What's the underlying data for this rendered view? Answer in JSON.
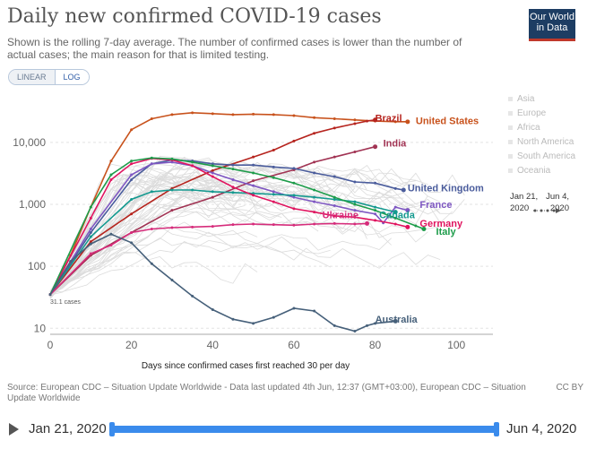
{
  "header": {
    "title": "Daily new confirmed COVID-19 cases",
    "subtitle": "Shown is the rolling 7-day average. The number of confirmed cases is lower than the number of actual cases; the main reason for that is limited testing.",
    "logo_line1": "Our World",
    "logo_line2": "in Data"
  },
  "controls": {
    "linear_label": "LINEAR",
    "log_label": "LOG",
    "selected": "LOG"
  },
  "legend": {
    "regions": [
      {
        "label": "Asia",
        "color": "#e6e6e6"
      },
      {
        "label": "Europe",
        "color": "#e6e6e6"
      },
      {
        "label": "Africa",
        "color": "#e6e6e6"
      },
      {
        "label": "North America",
        "color": "#e6e6e6"
      },
      {
        "label": "South America",
        "color": "#e6e6e6"
      },
      {
        "label": "Oceania",
        "color": "#e6e6e6"
      }
    ],
    "date_from": "Jan 21, 2020",
    "date_to": "Jun 4, 2020"
  },
  "footer": {
    "source": "Source: European CDC – Situation Update Worldwide - Data last updated 4th Jun, 12:37 (GMT+03:00), European CDC – Situation Update Worldwide",
    "license": "CC BY"
  },
  "timeline": {
    "start_label": "Jan 21, 2020",
    "end_label": "Jun 4, 2020"
  },
  "chart_data": {
    "type": "line",
    "title": "Daily new confirmed COVID-19 cases",
    "xlabel": "Days since confirmed cases first reached 30 per day",
    "ylabel": "",
    "xlim": [
      0,
      109
    ],
    "ylim": [
      8,
      60000
    ],
    "yscale": "log",
    "x_ticks": [
      0,
      20,
      40,
      60,
      80,
      100
    ],
    "y_ticks": [
      10,
      100,
      1000,
      10000
    ],
    "y_tick_labels": [
      "10",
      "100",
      "1,000",
      "10,000"
    ],
    "annotation": "31.1 cases",
    "series": [
      {
        "name": "United States",
        "color": "#c8521c",
        "points": [
          [
            0,
            35
          ],
          [
            5,
            150
          ],
          [
            10,
            900
          ],
          [
            15,
            5000
          ],
          [
            20,
            16000
          ],
          [
            25,
            24000
          ],
          [
            30,
            28000
          ],
          [
            35,
            30000
          ],
          [
            40,
            29000
          ],
          [
            45,
            28000
          ],
          [
            50,
            28500
          ],
          [
            55,
            28000
          ],
          [
            60,
            27000
          ],
          [
            65,
            25000
          ],
          [
            70,
            24000
          ],
          [
            75,
            23000
          ],
          [
            80,
            22000
          ],
          [
            85,
            21500
          ],
          [
            88,
            21500
          ]
        ]
      },
      {
        "name": "Brazil",
        "color": "#b6241e",
        "points": [
          [
            0,
            35
          ],
          [
            10,
            250
          ],
          [
            20,
            700
          ],
          [
            30,
            1800
          ],
          [
            40,
            3500
          ],
          [
            50,
            5800
          ],
          [
            55,
            7500
          ],
          [
            60,
            10500
          ],
          [
            65,
            14000
          ],
          [
            70,
            17000
          ],
          [
            75,
            20000
          ],
          [
            78,
            22000
          ],
          [
            80,
            23000
          ]
        ]
      },
      {
        "name": "India",
        "color": "#a13353",
        "points": [
          [
            0,
            35
          ],
          [
            10,
            150
          ],
          [
            20,
            350
          ],
          [
            30,
            800
          ],
          [
            40,
            1300
          ],
          [
            50,
            2400
          ],
          [
            60,
            3600
          ],
          [
            65,
            4800
          ],
          [
            70,
            5800
          ],
          [
            75,
            7000
          ],
          [
            80,
            8500
          ]
        ]
      },
      {
        "name": "United Kingdom",
        "color": "#4a5c9c",
        "points": [
          [
            0,
            35
          ],
          [
            10,
            350
          ],
          [
            20,
            2500
          ],
          [
            25,
            4500
          ],
          [
            30,
            5200
          ],
          [
            35,
            5000
          ],
          [
            40,
            4500
          ],
          [
            45,
            4300
          ],
          [
            50,
            4300
          ],
          [
            55,
            4000
          ],
          [
            60,
            3800
          ],
          [
            65,
            3200
          ],
          [
            70,
            2800
          ],
          [
            75,
            2300
          ],
          [
            80,
            2200
          ],
          [
            85,
            1800
          ],
          [
            87,
            1700
          ]
        ]
      },
      {
        "name": "France",
        "color": "#7e57c2",
        "points": [
          [
            0,
            35
          ],
          [
            10,
            400
          ],
          [
            20,
            3000
          ],
          [
            25,
            4500
          ],
          [
            30,
            4800
          ],
          [
            35,
            4200
          ],
          [
            40,
            3200
          ],
          [
            45,
            2500
          ],
          [
            50,
            2000
          ],
          [
            55,
            1600
          ],
          [
            60,
            1300
          ],
          [
            65,
            1100
          ],
          [
            70,
            950
          ],
          [
            75,
            800
          ],
          [
            80,
            700
          ],
          [
            82,
            500
          ],
          [
            85,
            900
          ],
          [
            88,
            800
          ]
        ]
      },
      {
        "name": "Canada",
        "color": "#14998f",
        "points": [
          [
            0,
            35
          ],
          [
            10,
            300
          ],
          [
            20,
            1200
          ],
          [
            25,
            1600
          ],
          [
            30,
            1700
          ],
          [
            35,
            1700
          ],
          [
            40,
            1600
          ],
          [
            45,
            1550
          ],
          [
            50,
            1500
          ],
          [
            55,
            1450
          ],
          [
            60,
            1400
          ],
          [
            65,
            1300
          ],
          [
            70,
            1200
          ],
          [
            75,
            1100
          ],
          [
            80,
            900
          ],
          [
            85,
            750
          ]
        ]
      },
      {
        "name": "Germany",
        "color": "#e0145f",
        "points": [
          [
            0,
            35
          ],
          [
            10,
            600
          ],
          [
            15,
            2500
          ],
          [
            20,
            4500
          ],
          [
            25,
            5500
          ],
          [
            30,
            5200
          ],
          [
            35,
            4200
          ],
          [
            40,
            2800
          ],
          [
            45,
            1900
          ],
          [
            50,
            1400
          ],
          [
            55,
            1100
          ],
          [
            60,
            850
          ],
          [
            65,
            750
          ],
          [
            70,
            650
          ],
          [
            75,
            620
          ],
          [
            80,
            550
          ],
          [
            85,
            480
          ],
          [
            88,
            430
          ]
        ]
      },
      {
        "name": "Italy",
        "color": "#1d9c4a",
        "points": [
          [
            0,
            35
          ],
          [
            10,
            900
          ],
          [
            15,
            3000
          ],
          [
            20,
            5000
          ],
          [
            25,
            5600
          ],
          [
            30,
            5400
          ],
          [
            35,
            4800
          ],
          [
            40,
            4200
          ],
          [
            45,
            3700
          ],
          [
            50,
            3200
          ],
          [
            55,
            2700
          ],
          [
            60,
            2200
          ],
          [
            65,
            1700
          ],
          [
            70,
            1300
          ],
          [
            75,
            1000
          ],
          [
            80,
            800
          ],
          [
            85,
            600
          ],
          [
            90,
            450
          ],
          [
            92,
            400
          ]
        ]
      },
      {
        "name": "Ukraine",
        "color": "#d62c7b",
        "points": [
          [
            0,
            35
          ],
          [
            10,
            160
          ],
          [
            15,
            220
          ],
          [
            20,
            350
          ],
          [
            25,
            400
          ],
          [
            30,
            420
          ],
          [
            35,
            430
          ],
          [
            40,
            440
          ],
          [
            45,
            470
          ],
          [
            50,
            480
          ],
          [
            55,
            470
          ],
          [
            60,
            460
          ],
          [
            65,
            480
          ],
          [
            70,
            490
          ],
          [
            75,
            480
          ],
          [
            78,
            490
          ]
        ]
      },
      {
        "name": "Australia",
        "color": "#46607a",
        "points": [
          [
            0,
            35
          ],
          [
            5,
            120
          ],
          [
            10,
            230
          ],
          [
            15,
            330
          ],
          [
            20,
            240
          ],
          [
            25,
            110
          ],
          [
            30,
            60
          ],
          [
            35,
            33
          ],
          [
            40,
            20
          ],
          [
            45,
            14
          ],
          [
            50,
            12
          ],
          [
            55,
            15
          ],
          [
            60,
            21
          ],
          [
            65,
            19
          ],
          [
            70,
            11
          ],
          [
            75,
            9
          ],
          [
            78,
            11
          ],
          [
            80,
            12
          ],
          [
            85,
            13
          ]
        ]
      }
    ],
    "label_positions": [
      {
        "name": "Brazil",
        "x": 80,
        "y": 25000
      },
      {
        "name": "United States",
        "x": 90,
        "y": 22500
      },
      {
        "name": "India",
        "x": 82,
        "y": 9800
      },
      {
        "name": "United Kingdom",
        "x": 88,
        "y": 1850
      },
      {
        "name": "France",
        "x": 91,
        "y": 1000
      },
      {
        "name": "Ukraine",
        "x": 67,
        "y": 680
      },
      {
        "name": "Canada",
        "x": 81,
        "y": 680
      },
      {
        "name": "Germany",
        "x": 91,
        "y": 500
      },
      {
        "name": "Italy",
        "x": 95,
        "y": 370
      },
      {
        "name": "Australia",
        "x": 80,
        "y": 14
      }
    ]
  }
}
